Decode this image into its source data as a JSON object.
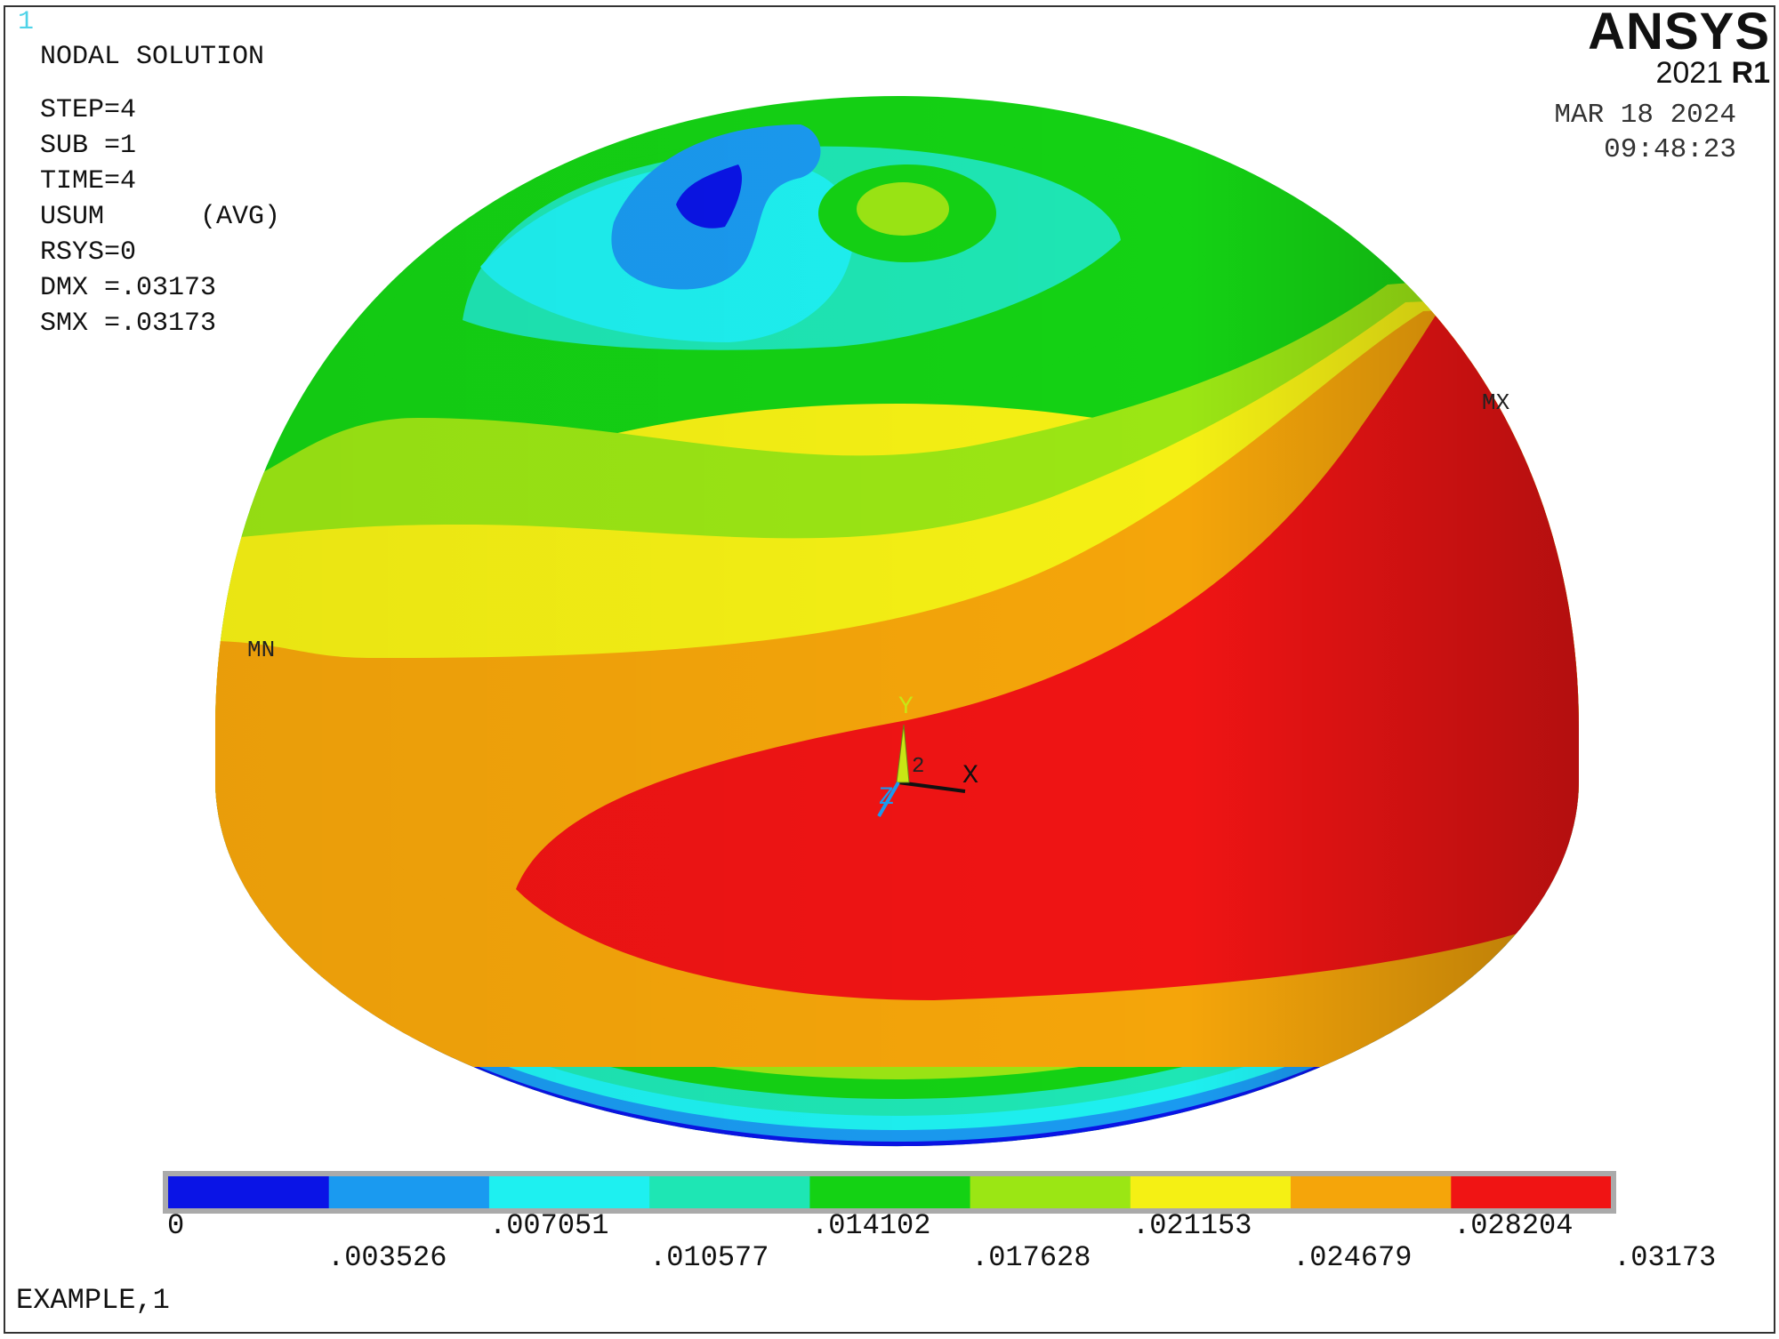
{
  "window_number": "1",
  "header": {
    "title": "NODAL SOLUTION",
    "lines": [
      "STEP=4",
      "SUB =1",
      "TIME=4",
      "USUM      (AVG)",
      "RSYS=0",
      "DMX =.03173",
      "SMX =.03173"
    ]
  },
  "logo": {
    "brand": "ANSYS",
    "version": "2021",
    "release": "R1"
  },
  "datetime": {
    "date": "MAR 18 2024",
    "time": "09:48:23"
  },
  "markers": {
    "min": "MN",
    "max": "MX"
  },
  "triad": {
    "x": "X",
    "y": "Y",
    "z": "Z",
    "id": "2"
  },
  "legend": {
    "colors": [
      "#0a14e6",
      "#1a9af0",
      "#1ef0f0",
      "#1ee6b4",
      "#14d214",
      "#9be614",
      "#f5f014",
      "#f5a50a",
      "#f01414"
    ],
    "labels_top": [
      "0",
      ".007051",
      ".014102",
      ".021153",
      ".028204"
    ],
    "labels_bottom": [
      ".003526",
      ".010577",
      ".017628",
      ".024679",
      ".03173"
    ]
  },
  "footer": "EXAMPLE,1"
}
